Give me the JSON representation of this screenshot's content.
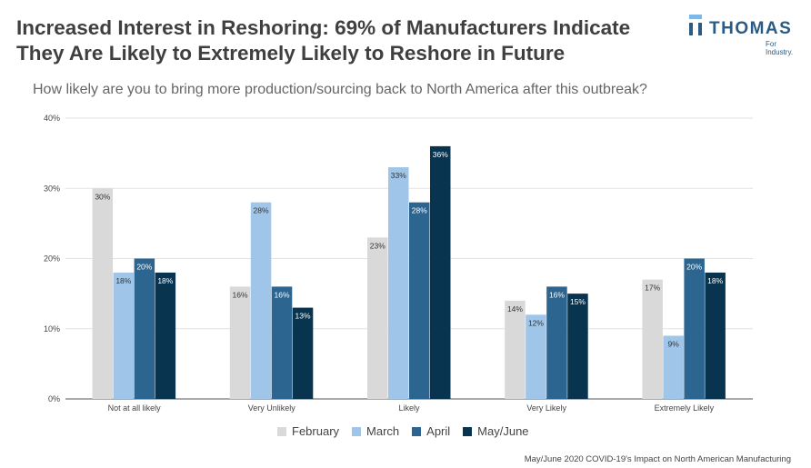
{
  "header": {
    "title": "Increased Interest in Reshoring: 69% of Manufacturers Indicate They Are Likely to Extremely Likely to Reshore in Future"
  },
  "logo": {
    "text": "THOMAS",
    "tagline": "For Industry."
  },
  "footer": {
    "source": "May/June 2020 COVID-19's Impact on North American Manufacturing"
  },
  "chart_data": {
    "type": "bar",
    "title": "How likely are you to bring more production/sourcing back to North America after this outbreak?",
    "categories": [
      "Not at all likely",
      "Very Unlikely",
      "Likely",
      "Very Likely",
      "Extremely Likely"
    ],
    "series": [
      {
        "name": "February",
        "color": "#d9d9d9",
        "values": [
          30,
          16,
          23,
          14,
          17
        ]
      },
      {
        "name": "March",
        "color": "#9fc5e8",
        "values": [
          18,
          28,
          33,
          12,
          9
        ]
      },
      {
        "name": "April",
        "color": "#2b6590",
        "values": [
          20,
          16,
          28,
          16,
          20
        ]
      },
      {
        "name": "May/June",
        "color": "#08344f",
        "values": [
          18,
          13,
          36,
          15,
          18
        ]
      }
    ],
    "ylim": [
      0,
      40
    ],
    "yticks": [
      "0%",
      "10%",
      "20%",
      "30%",
      "40%"
    ],
    "grid": true,
    "legend": "bottom"
  }
}
